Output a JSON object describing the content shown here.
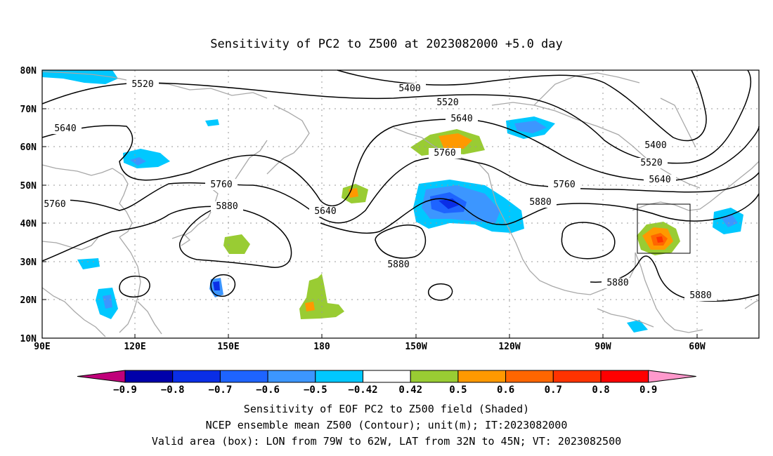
{
  "title": "Sensitivity of PC2 to Z500 at 2023082000 +5.0 day",
  "x_ticks": [
    "90E",
    "120E",
    "150E",
    "180",
    "150W",
    "120W",
    "90W",
    "60W"
  ],
  "y_ticks": [
    "80N",
    "70N",
    "60N",
    "50N",
    "40N",
    "30N",
    "20N",
    "10N"
  ],
  "contour_labels": [
    "5520",
    "5400",
    "5520",
    "5640",
    "5640",
    "5760",
    "5760",
    "5880",
    "5640",
    "5760",
    "5880",
    "5880",
    "5400",
    "5520",
    "5640",
    "5880",
    "5880",
    "5760"
  ],
  "colorbar": {
    "labels": [
      "-0.9",
      "-0.8",
      "-0.7",
      "-0.6",
      "-0.5",
      "-0.42",
      "0.42",
      "0.5",
      "0.6",
      "0.7",
      "0.8",
      "0.9"
    ],
    "colors": [
      "#0000aa",
      "#0a2ee6",
      "#1e64ff",
      "#3c96ff",
      "#00c8ff",
      "#ffffff",
      "#99cc33",
      "#ff9900",
      "#ff6600",
      "#ff3300",
      "#ff0000"
    ],
    "low_extend_color": "#c0007a",
    "high_extend_color": "#ff99cc"
  },
  "captions": [
    "Sensitivity of EOF PC2 to Z500 field (Shaded)",
    "NCEP ensemble mean Z500 (Contour); unit(m); IT:2023082000",
    "Valid area (box): LON from 79W to 62W, LAT from 32N to 45N; VT: 2023082500"
  ]
}
